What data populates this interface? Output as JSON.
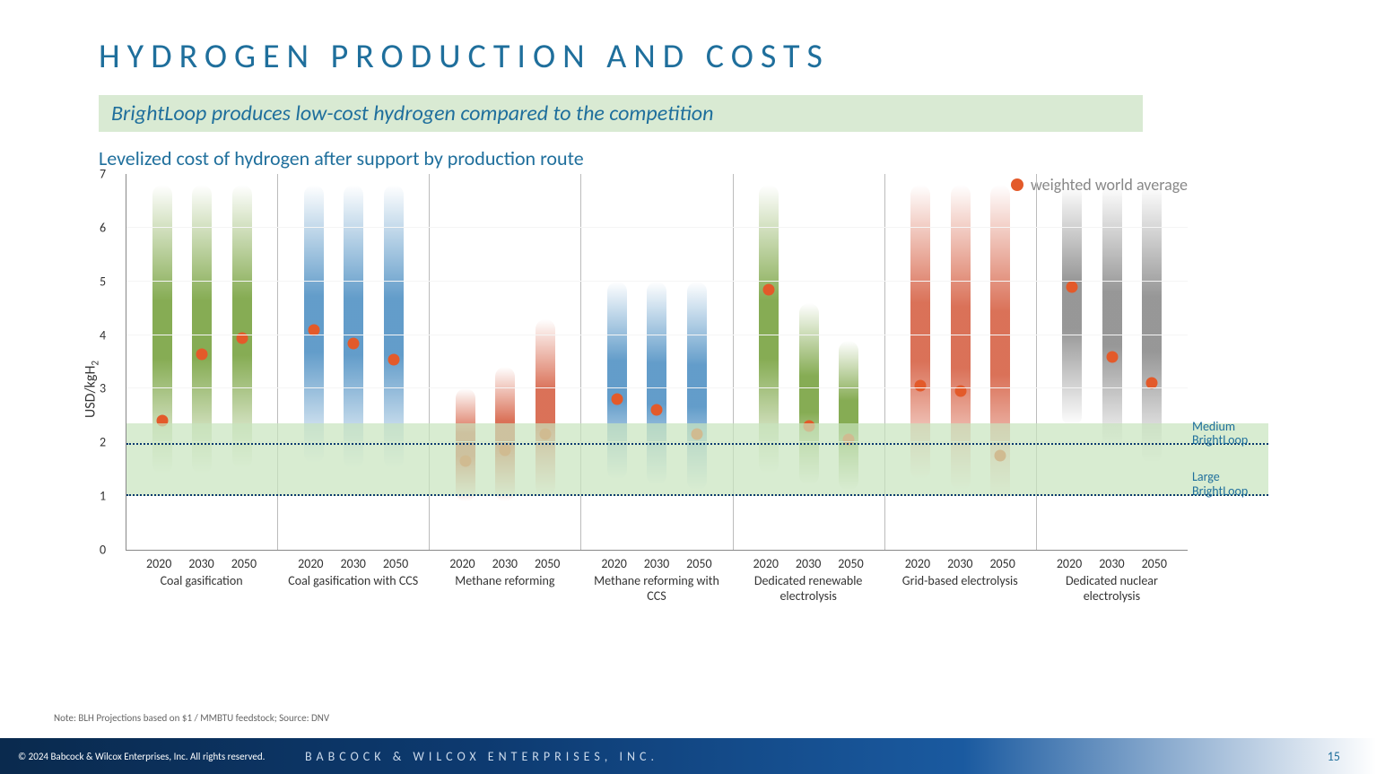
{
  "title": "HYDROGEN PRODUCTION AND COSTS",
  "subtitle": "BrightLoop produces low-cost hydrogen compared to the competition",
  "chart_title": "Levelized cost of hydrogen after support by production route",
  "legend_label": "weighted world average",
  "ylabel": "USD/kgH",
  "ylabel_sub": "2",
  "note": "Note: BLH Projections based on $1 / MMBTU feedstock; Source: DNV",
  "copyright": "© 2024 Babcock & Wilcox Enterprises, Inc. All rights reserved.",
  "company": "BABCOCK & WILCOX ENTERPRISES, INC.",
  "pagenum": "15",
  "chart": {
    "type": "range-column-with-marker",
    "ymin": 0,
    "ymax": 7,
    "ytick_step": 1,
    "years": [
      "2020",
      "2030",
      "2050"
    ],
    "brightloop": {
      "medium": 1.95,
      "large": 1.0,
      "band_low": 1.0,
      "band_high": 2.35,
      "label_medium": "Medium BrightLoop",
      "label_large": "Large BrightLoop"
    },
    "colors": {
      "green_top": "rgba(121,163,65,0)",
      "green_mid": "rgba(121,163,65,0.9)",
      "green_bot": "rgba(121,163,65,0)",
      "blue_top": "rgba(82,146,196,0)",
      "blue_mid": "rgba(82,146,196,0.9)",
      "blue_bot": "rgba(82,146,196,0)",
      "red_top": "rgba(214,98,70,0)",
      "red_mid": "rgba(214,98,70,0.9)",
      "red_bot": "rgba(214,98,70,0)",
      "grey_top": "rgba(140,140,140,0)",
      "grey_mid": "rgba(140,140,140,0.9)",
      "grey_bot": "rgba(140,140,140,0)",
      "dot": "#e35a2a"
    },
    "groups": [
      {
        "label": "Coal gasification",
        "color": "green",
        "bars": [
          {
            "low": 1.4,
            "high": 6.8,
            "avg": 2.4
          },
          {
            "low": 1.4,
            "high": 6.8,
            "avg": 3.65
          },
          {
            "low": 1.5,
            "high": 6.8,
            "avg": 3.95
          }
        ]
      },
      {
        "label": "Coal gasification with CCS",
        "color": "blue",
        "bars": [
          {
            "low": 1.6,
            "high": 6.8,
            "avg": 4.1
          },
          {
            "low": 1.5,
            "high": 6.8,
            "avg": 3.85
          },
          {
            "low": 1.5,
            "high": 6.8,
            "avg": 3.55
          }
        ]
      },
      {
        "label": "Methane reforming",
        "color": "red",
        "bars": [
          {
            "low": 0.9,
            "high": 3.0,
            "avg": 1.65
          },
          {
            "low": 0.9,
            "high": 3.4,
            "avg": 1.85
          },
          {
            "low": 1.0,
            "high": 4.3,
            "avg": 2.15
          }
        ]
      },
      {
        "label": "Methane reforming with CCS",
        "color": "blue",
        "bars": [
          {
            "low": 1.3,
            "high": 5.0,
            "avg": 2.8
          },
          {
            "low": 1.2,
            "high": 5.0,
            "avg": 2.6
          },
          {
            "low": 1.1,
            "high": 5.0,
            "avg": 2.15
          }
        ]
      },
      {
        "label": "Dedicated renewable electrolysis",
        "color": "green",
        "bars": [
          {
            "low": 1.4,
            "high": 6.8,
            "avg": 4.85
          },
          {
            "low": 1.2,
            "high": 4.6,
            "avg": 2.3
          },
          {
            "low": 1.1,
            "high": 3.9,
            "avg": 2.05
          }
        ]
      },
      {
        "label": "Grid-based electrolysis",
        "color": "red",
        "bars": [
          {
            "low": 1.3,
            "high": 6.8,
            "avg": 3.05
          },
          {
            "low": 1.1,
            "high": 6.8,
            "avg": 2.95
          },
          {
            "low": 0.9,
            "high": 6.8,
            "avg": 1.75
          }
        ]
      },
      {
        "label": "Dedicated nuclear electrolysis",
        "color": "grey",
        "bars": [
          {
            "low": 2.3,
            "high": 6.8,
            "avg": 4.9
          },
          {
            "low": 1.8,
            "high": 6.8,
            "avg": 3.6
          },
          {
            "low": 1.6,
            "high": 6.8,
            "avg": 3.1
          }
        ]
      }
    ]
  }
}
